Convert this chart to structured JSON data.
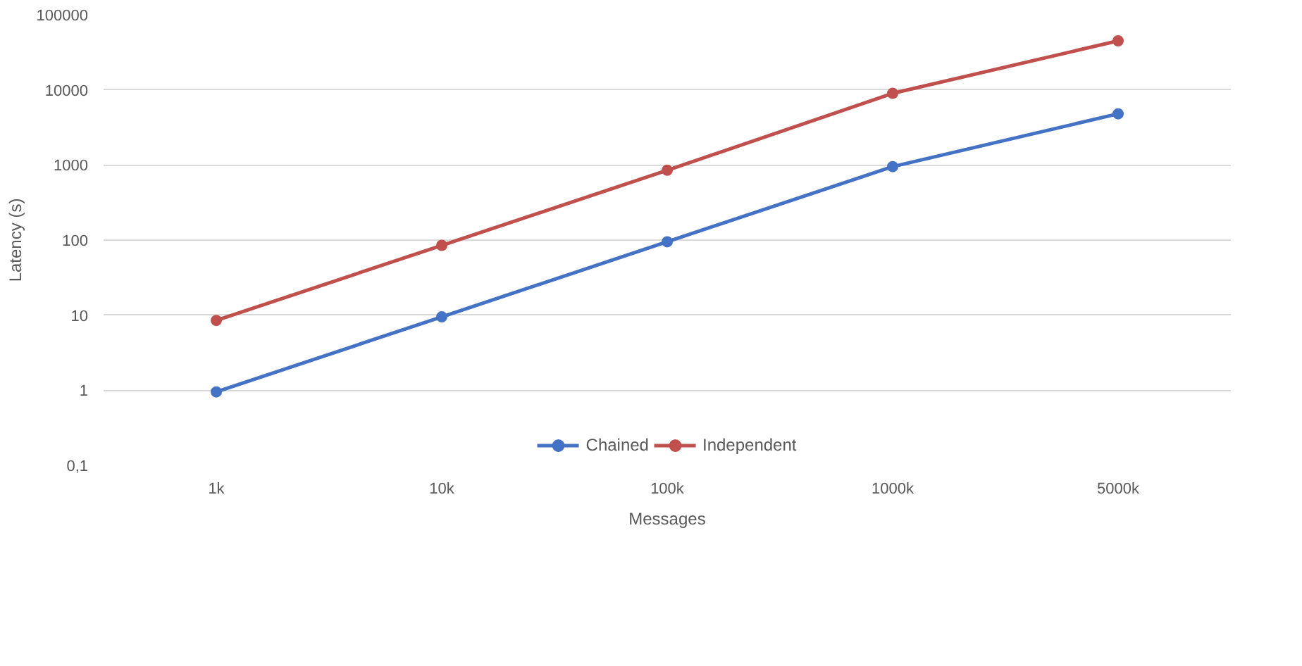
{
  "chart_data": {
    "type": "line",
    "xlabel": "Messages",
    "ylabel": "Latency (s)",
    "categories": [
      "1k",
      "10k",
      "100k",
      "1000k",
      "5000k"
    ],
    "series": [
      {
        "name": "Chained",
        "color": "#4472c4",
        "values": [
          0.95,
          9.5,
          95,
          950,
          4800
        ]
      },
      {
        "name": "Independent",
        "color": "#c0504d",
        "values": [
          8.5,
          85,
          850,
          9000,
          45000
        ]
      }
    ],
    "log": "y",
    "ylim": [
      0.1,
      100000
    ],
    "yticks": [
      {
        "value": 0.1,
        "label": "0,1"
      },
      1,
      10,
      100,
      1000,
      10000,
      100000
    ],
    "grid": "y",
    "legend": "bottom",
    "marker": "circle",
    "line_style": "solid"
  }
}
